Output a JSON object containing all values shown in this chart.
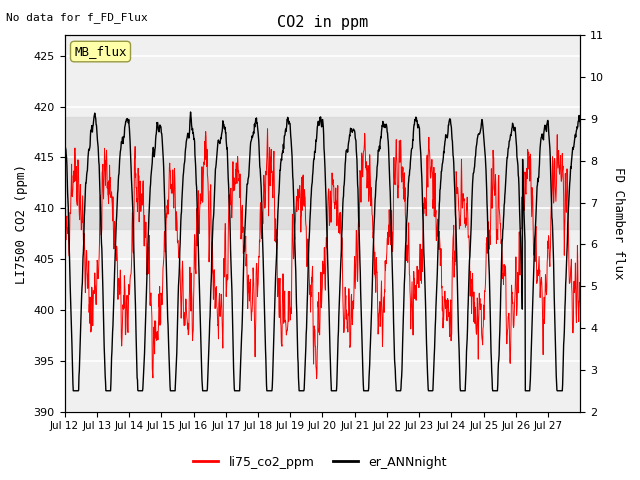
{
  "title": "CO2 in ppm",
  "no_data_text": "No data for f_FD_Flux",
  "ylabel_left": "LI7500 CO2 (ppm)",
  "ylabel_right": "FD Chamber flux",
  "ylim_left": [
    390,
    427
  ],
  "ylim_right": [
    2.0,
    11.0
  ],
  "yticks_left": [
    390,
    395,
    400,
    405,
    410,
    415,
    420,
    425
  ],
  "yticks_right": [
    2.0,
    3.0,
    4.0,
    5.0,
    6.0,
    7.0,
    8.0,
    9.0,
    10.0,
    11.0
  ],
  "xtick_labels": [
    "Jul 12",
    "Jul 13",
    "Jul 14",
    "Jul 15",
    "Jul 16",
    "Jul 17",
    "Jul 18",
    "Jul 19",
    "Jul 20",
    "Jul 21",
    "Jul 22",
    "Jul 23",
    "Jul 24",
    "Jul 25",
    "Jul 26",
    "Jul 27"
  ],
  "shaded_band": [
    408,
    419
  ],
  "legend_items": [
    {
      "label": "li75_co2_ppm",
      "color": "red",
      "lw": 1.5
    },
    {
      "label": "er_ANNnight",
      "color": "black",
      "lw": 1.5
    }
  ],
  "mb_flux_box": {
    "text": "MB_flux",
    "facecolor": "#ffffaa",
    "edgecolor": "#999944"
  },
  "background_color": "#f0f0f0",
  "grid_color": "white",
  "font_family": "monospace"
}
